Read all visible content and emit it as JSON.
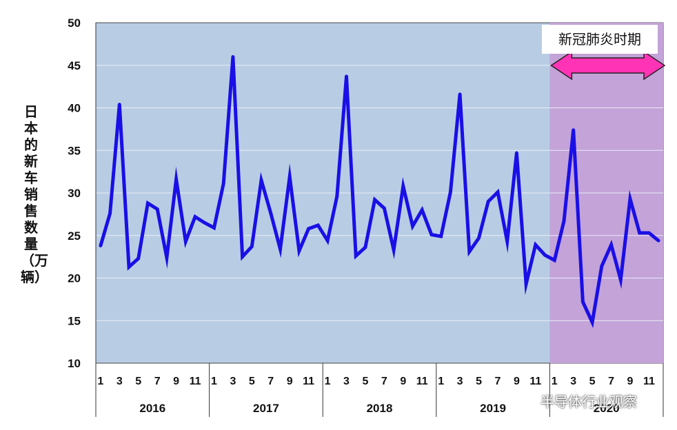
{
  "chart_data": {
    "type": "line",
    "title": "",
    "ylabel": "日本的新车销售数量（万辆）",
    "ylim": [
      10,
      50
    ],
    "yticks": [
      10,
      15,
      20,
      25,
      30,
      35,
      40,
      45,
      50
    ],
    "grid": true,
    "month_ticks": [
      "1",
      "3",
      "5",
      "7",
      "9",
      "11"
    ],
    "years": [
      "2016",
      "2017",
      "2018",
      "2019",
      "2020"
    ],
    "series": [
      {
        "color": "#1a0fe6",
        "values": [
          23.8,
          27.6,
          40.4,
          21.3,
          22.3,
          28.8,
          28.1,
          22.4,
          31.6,
          24.3,
          27.2,
          26.5,
          25.9,
          31.1,
          46.0,
          22.5,
          23.7,
          31.5,
          27.6,
          23.4,
          31.9,
          23.2,
          25.8,
          26.2,
          24.4,
          29.6,
          43.7,
          22.6,
          23.6,
          29.2,
          28.2,
          23.3,
          30.8,
          26.1,
          28.0,
          25.1,
          24.9,
          30.1,
          41.6,
          23.1,
          24.7,
          29.0,
          30.1,
          24.3,
          34.7,
          19.3,
          23.9,
          22.7,
          22.1,
          26.7,
          37.4,
          17.2,
          14.8,
          21.4,
          23.9,
          19.8,
          29.3,
          25.3,
          25.3,
          24.4
        ]
      }
    ],
    "annotation": {
      "label": "新冠肺炎时期",
      "start_index": 48,
      "end_index": 59
    },
    "colors": {
      "plot_bg": "#b8cde4",
      "covid_bg": "#c3a3d8",
      "arrow": "#ff33b5",
      "line": "#1a0fe6"
    }
  },
  "watermark": "半导体行业观察"
}
